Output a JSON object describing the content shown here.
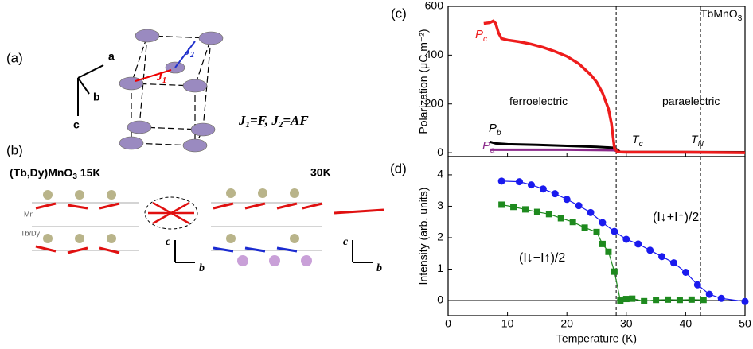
{
  "panels": {
    "a": {
      "label": "(a)",
      "axes": [
        "a",
        "b",
        "c"
      ],
      "J1": {
        "text": "J",
        "sub": "1"
      },
      "J2": {
        "text": "J",
        "sub": "2"
      },
      "relation": [
        {
          "text": "J",
          "sub": "1"
        },
        {
          "text": "=F,  J",
          "sub": "2"
        },
        {
          "text": "=AF",
          "sub": ""
        }
      ]
    },
    "b": {
      "label": "(b)",
      "compound": {
        "text": "(Tb,Dy)MnO",
        "sub": "3",
        "after": " 15K"
      },
      "temp2": "30K",
      "site_labels": [
        "Mn",
        "Tb/Dy"
      ],
      "axes_left": [
        "c",
        "b"
      ],
      "axes_right": [
        "c",
        "b"
      ]
    }
  },
  "chart_data": [
    {
      "type": "line",
      "panel_label": "(c)",
      "y_label": "Polarization (μC m⁻²)",
      "xlim": [
        0,
        50
      ],
      "xticks": [
        0,
        10,
        20,
        30,
        40,
        50
      ],
      "ylim": [
        -16,
        600
      ],
      "yticks": [
        0,
        200,
        400,
        600
      ],
      "vlines": [
        28.3,
        42.5
      ],
      "series": [
        {
          "name": "P",
          "name_sub": "a",
          "color": "#8b2a8b",
          "x": [
            7,
            10,
            20,
            28,
            29,
            50
          ],
          "values": [
            12,
            12,
            12,
            10,
            2,
            1
          ]
        },
        {
          "name": "P",
          "name_sub": "b",
          "color": "#000000",
          "x": [
            7,
            8,
            10,
            15,
            20,
            25,
            28,
            29,
            50
          ],
          "values": [
            45,
            38,
            35,
            32,
            28,
            24,
            20,
            3,
            2
          ]
        },
        {
          "name": "P",
          "name_sub": "c",
          "color": "#ee1c1c",
          "x": [
            6,
            7,
            7.6,
            8,
            8.5,
            9,
            10,
            12,
            14,
            16,
            18,
            20,
            22,
            24,
            25,
            26,
            27,
            27.5,
            28,
            28.5,
            30,
            40,
            50
          ],
          "values": [
            530,
            533,
            540,
            530,
            490,
            468,
            462,
            455,
            445,
            432,
            415,
            395,
            365,
            320,
            290,
            245,
            180,
            120,
            20,
            3,
            2,
            2,
            0
          ]
        }
      ],
      "annotations": [
        {
          "text": "ferroelectric"
        },
        {
          "text": "paraelectric"
        },
        {
          "text": "T",
          "sub": "c"
        },
        {
          "text": "T",
          "sub": "N"
        },
        {
          "text": "TbMnO",
          "sub": "3"
        }
      ]
    },
    {
      "type": "line",
      "panel_label": "(d)",
      "x_label": "Temperature (K)",
      "y_label": "Intensity (arb. units)",
      "xlim": [
        0,
        50
      ],
      "xticks": [
        0,
        10,
        20,
        30,
        40,
        50
      ],
      "ylim": [
        -0.48,
        4.58
      ],
      "yticks": [
        0,
        1,
        2,
        3,
        4
      ],
      "vlines": [
        28.3,
        42.5
      ],
      "zero_line": true,
      "series": [
        {
          "name": "(I↓+I↑)/2",
          "color": "#1a1aee",
          "marker": "circle",
          "x": [
            9,
            12,
            14,
            16,
            18,
            20,
            22,
            24,
            26,
            28,
            30,
            32,
            34,
            36,
            38,
            40,
            42,
            44,
            46,
            50
          ],
          "values": [
            3.8,
            3.78,
            3.68,
            3.55,
            3.4,
            3.22,
            3.02,
            2.8,
            2.48,
            2.2,
            1.95,
            1.8,
            1.6,
            1.4,
            1.2,
            0.9,
            0.5,
            0.2,
            0.07,
            -0.03
          ]
        },
        {
          "name": "(I↓−I↑)/2",
          "color": "#1e8a1e",
          "marker": "square",
          "x": [
            9,
            11,
            13,
            15,
            17,
            19,
            21,
            23,
            25,
            26,
            27,
            28,
            29,
            30,
            31,
            33,
            35,
            37,
            39,
            41,
            43
          ],
          "values": [
            3.05,
            2.98,
            2.9,
            2.82,
            2.75,
            2.62,
            2.5,
            2.32,
            2.18,
            1.8,
            1.55,
            0.92,
            0.0,
            0.05,
            0.06,
            -0.02,
            0.02,
            0.03,
            0.02,
            0.03,
            0.02
          ]
        }
      ]
    }
  ]
}
